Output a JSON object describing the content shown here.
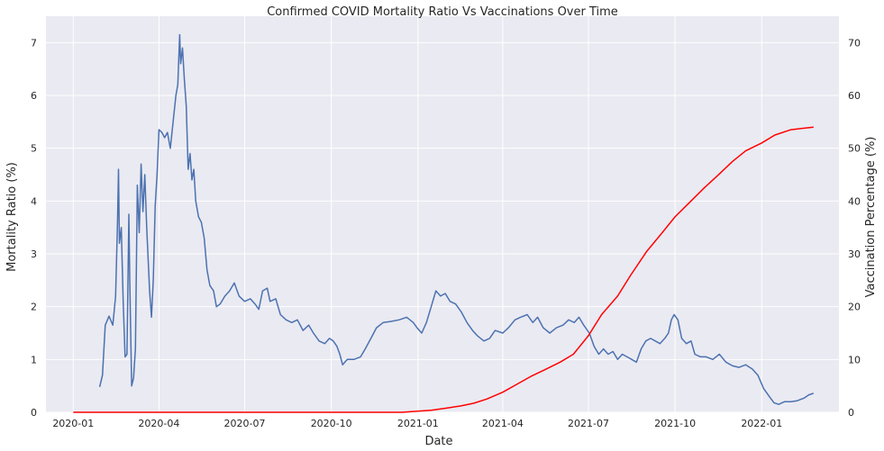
{
  "chart_data": {
    "type": "line",
    "title": "Confirmed COVID Mortality Ratio Vs Vaccinations Over Time",
    "xlabel": "Date",
    "ylabel_left": "Mortality Ratio (%)",
    "ylabel_right": "Vaccination Percentage (%)",
    "x_ticks": [
      "2020-01",
      "2020-04",
      "2020-07",
      "2020-10",
      "2021-01",
      "2021-04",
      "2021-07",
      "2021-10",
      "2022-01"
    ],
    "ylim_left": [
      0,
      7.5
    ],
    "yticks_left": [
      "0",
      "1",
      "2",
      "3",
      "4",
      "5",
      "6",
      "7"
    ],
    "ylim_right": [
      0,
      75
    ],
    "yticks_right": [
      "0",
      "10",
      "20",
      "30",
      "40",
      "50",
      "60",
      "70"
    ],
    "grid": true,
    "legend": "none",
    "colors": {
      "mortality": "#4c72b0",
      "vaccination": "#ff0000",
      "background": "#eaeaf2",
      "grid": "#ffffff"
    },
    "series": [
      {
        "axis": "left",
        "color": "#4c72b0",
        "points": [
          [
            "2020-01-29",
            0.48
          ],
          [
            "2020-02-01",
            0.7
          ],
          [
            "2020-02-04",
            1.65
          ],
          [
            "2020-02-08",
            1.82
          ],
          [
            "2020-02-12",
            1.65
          ],
          [
            "2020-02-15",
            2.2
          ],
          [
            "2020-02-17",
            3.6
          ],
          [
            "2020-02-18",
            4.6
          ],
          [
            "2020-02-19",
            3.2
          ],
          [
            "2020-02-21",
            3.5
          ],
          [
            "2020-02-23",
            2.1
          ],
          [
            "2020-02-25",
            1.05
          ],
          [
            "2020-02-27",
            1.1
          ],
          [
            "2020-02-29",
            3.75
          ],
          [
            "2020-03-01",
            2.5
          ],
          [
            "2020-03-03",
            0.5
          ],
          [
            "2020-03-05",
            0.65
          ],
          [
            "2020-03-07",
            1.2
          ],
          [
            "2020-03-09",
            4.3
          ],
          [
            "2020-03-11",
            3.4
          ],
          [
            "2020-03-13",
            4.7
          ],
          [
            "2020-03-15",
            3.8
          ],
          [
            "2020-03-17",
            4.5
          ],
          [
            "2020-03-19",
            3.5
          ],
          [
            "2020-03-22",
            2.3
          ],
          [
            "2020-03-24",
            1.8
          ],
          [
            "2020-03-26",
            2.5
          ],
          [
            "2020-03-28",
            3.9
          ],
          [
            "2020-03-30",
            4.5
          ],
          [
            "2020-04-01",
            5.35
          ],
          [
            "2020-04-04",
            5.3
          ],
          [
            "2020-04-07",
            5.2
          ],
          [
            "2020-04-10",
            5.3
          ],
          [
            "2020-04-13",
            5.0
          ],
          [
            "2020-04-16",
            5.5
          ],
          [
            "2020-04-19",
            6.0
          ],
          [
            "2020-04-21",
            6.2
          ],
          [
            "2020-04-23",
            7.15
          ],
          [
            "2020-04-24",
            6.6
          ],
          [
            "2020-04-26",
            6.9
          ],
          [
            "2020-04-28",
            6.3
          ],
          [
            "2020-04-30",
            5.8
          ],
          [
            "2020-05-02",
            4.6
          ],
          [
            "2020-05-04",
            4.9
          ],
          [
            "2020-05-06",
            4.4
          ],
          [
            "2020-05-08",
            4.6
          ],
          [
            "2020-05-10",
            4.0
          ],
          [
            "2020-05-13",
            3.7
          ],
          [
            "2020-05-16",
            3.6
          ],
          [
            "2020-05-19",
            3.3
          ],
          [
            "2020-05-22",
            2.7
          ],
          [
            "2020-05-25",
            2.4
          ],
          [
            "2020-05-29",
            2.3
          ],
          [
            "2020-06-01",
            2.0
          ],
          [
            "2020-06-05",
            2.05
          ],
          [
            "2020-06-10",
            2.2
          ],
          [
            "2020-06-15",
            2.3
          ],
          [
            "2020-06-20",
            2.45
          ],
          [
            "2020-06-25",
            2.2
          ],
          [
            "2020-07-01",
            2.1
          ],
          [
            "2020-07-07",
            2.15
          ],
          [
            "2020-07-12",
            2.05
          ],
          [
            "2020-07-16",
            1.95
          ],
          [
            "2020-07-20",
            2.3
          ],
          [
            "2020-07-25",
            2.35
          ],
          [
            "2020-07-28",
            2.1
          ],
          [
            "2020-08-03",
            2.15
          ],
          [
            "2020-08-08",
            1.85
          ],
          [
            "2020-08-14",
            1.75
          ],
          [
            "2020-08-20",
            1.7
          ],
          [
            "2020-08-26",
            1.75
          ],
          [
            "2020-09-01",
            1.55
          ],
          [
            "2020-09-07",
            1.65
          ],
          [
            "2020-09-12",
            1.5
          ],
          [
            "2020-09-18",
            1.35
          ],
          [
            "2020-09-24",
            1.3
          ],
          [
            "2020-09-29",
            1.4
          ],
          [
            "2020-10-03",
            1.35
          ],
          [
            "2020-10-07",
            1.25
          ],
          [
            "2020-10-10",
            1.1
          ],
          [
            "2020-10-13",
            0.9
          ],
          [
            "2020-10-18",
            1.0
          ],
          [
            "2020-10-25",
            1.0
          ],
          [
            "2020-11-01",
            1.05
          ],
          [
            "2020-11-06",
            1.2
          ],
          [
            "2020-11-12",
            1.4
          ],
          [
            "2020-11-18",
            1.6
          ],
          [
            "2020-11-25",
            1.7
          ],
          [
            "2020-12-03",
            1.72
          ],
          [
            "2020-12-12",
            1.75
          ],
          [
            "2020-12-20",
            1.8
          ],
          [
            "2020-12-27",
            1.7
          ],
          [
            "2020-12-31",
            1.6
          ],
          [
            "2021-01-05",
            1.5
          ],
          [
            "2021-01-10",
            1.7
          ],
          [
            "2021-01-15",
            2.0
          ],
          [
            "2021-01-20",
            2.3
          ],
          [
            "2021-01-25",
            2.2
          ],
          [
            "2021-01-30",
            2.25
          ],
          [
            "2021-02-04",
            2.1
          ],
          [
            "2021-02-10",
            2.05
          ],
          [
            "2021-02-16",
            1.9
          ],
          [
            "2021-02-22",
            1.7
          ],
          [
            "2021-02-28",
            1.55
          ],
          [
            "2021-03-05",
            1.45
          ],
          [
            "2021-03-12",
            1.35
          ],
          [
            "2021-03-18",
            1.4
          ],
          [
            "2021-03-24",
            1.55
          ],
          [
            "2021-04-01",
            1.5
          ],
          [
            "2021-04-07",
            1.6
          ],
          [
            "2021-04-14",
            1.75
          ],
          [
            "2021-04-20",
            1.8
          ],
          [
            "2021-04-27",
            1.85
          ],
          [
            "2021-05-03",
            1.7
          ],
          [
            "2021-05-08",
            1.8
          ],
          [
            "2021-05-14",
            1.6
          ],
          [
            "2021-05-21",
            1.5
          ],
          [
            "2021-05-28",
            1.6
          ],
          [
            "2021-06-04",
            1.65
          ],
          [
            "2021-06-10",
            1.75
          ],
          [
            "2021-06-16",
            1.7
          ],
          [
            "2021-06-21",
            1.8
          ],
          [
            "2021-06-26",
            1.65
          ],
          [
            "2021-07-02",
            1.5
          ],
          [
            "2021-07-07",
            1.25
          ],
          [
            "2021-07-12",
            1.1
          ],
          [
            "2021-07-17",
            1.2
          ],
          [
            "2021-07-22",
            1.1
          ],
          [
            "2021-07-27",
            1.15
          ],
          [
            "2021-08-01",
            1.0
          ],
          [
            "2021-08-06",
            1.1
          ],
          [
            "2021-08-11",
            1.05
          ],
          [
            "2021-08-16",
            1.0
          ],
          [
            "2021-08-21",
            0.95
          ],
          [
            "2021-08-26",
            1.2
          ],
          [
            "2021-08-31",
            1.35
          ],
          [
            "2021-09-05",
            1.4
          ],
          [
            "2021-09-10",
            1.35
          ],
          [
            "2021-09-15",
            1.3
          ],
          [
            "2021-09-20",
            1.4
          ],
          [
            "2021-09-24",
            1.5
          ],
          [
            "2021-09-27",
            1.75
          ],
          [
            "2021-09-30",
            1.85
          ],
          [
            "2021-10-04",
            1.75
          ],
          [
            "2021-10-08",
            1.4
          ],
          [
            "2021-10-13",
            1.3
          ],
          [
            "2021-10-18",
            1.35
          ],
          [
            "2021-10-22",
            1.1
          ],
          [
            "2021-10-28",
            1.05
          ],
          [
            "2021-11-03",
            1.05
          ],
          [
            "2021-11-10",
            1.0
          ],
          [
            "2021-11-17",
            1.1
          ],
          [
            "2021-11-24",
            0.95
          ],
          [
            "2021-12-01",
            0.88
          ],
          [
            "2021-12-08",
            0.85
          ],
          [
            "2021-12-15",
            0.9
          ],
          [
            "2021-12-22",
            0.82
          ],
          [
            "2021-12-28",
            0.7
          ],
          [
            "2022-01-03",
            0.45
          ],
          [
            "2022-01-09",
            0.3
          ],
          [
            "2022-01-14",
            0.18
          ],
          [
            "2022-01-19",
            0.15
          ],
          [
            "2022-01-25",
            0.2
          ],
          [
            "2022-02-01",
            0.2
          ],
          [
            "2022-02-08",
            0.22
          ],
          [
            "2022-02-15",
            0.27
          ],
          [
            "2022-02-20",
            0.33
          ],
          [
            "2022-02-25",
            0.36
          ]
        ]
      },
      {
        "axis": "right",
        "color": "#ff0000",
        "points": [
          [
            "2020-01-01",
            0
          ],
          [
            "2020-12-15",
            0
          ],
          [
            "2021-01-01",
            0.2
          ],
          [
            "2021-01-15",
            0.4
          ],
          [
            "2021-02-01",
            0.8
          ],
          [
            "2021-02-15",
            1.2
          ],
          [
            "2021-03-01",
            1.7
          ],
          [
            "2021-03-15",
            2.5
          ],
          [
            "2021-04-01",
            3.8
          ],
          [
            "2021-04-15",
            5.2
          ],
          [
            "2021-05-01",
            6.8
          ],
          [
            "2021-05-15",
            8.0
          ],
          [
            "2021-06-01",
            9.5
          ],
          [
            "2021-06-15",
            11.0
          ],
          [
            "2021-07-01",
            14.5
          ],
          [
            "2021-07-15",
            18.5
          ],
          [
            "2021-08-01",
            22.0
          ],
          [
            "2021-08-15",
            26.0
          ],
          [
            "2021-09-01",
            30.5
          ],
          [
            "2021-09-15",
            33.5
          ],
          [
            "2021-10-01",
            37.0
          ],
          [
            "2021-10-15",
            39.5
          ],
          [
            "2021-11-01",
            42.5
          ],
          [
            "2021-11-15",
            44.8
          ],
          [
            "2021-12-01",
            47.5
          ],
          [
            "2021-12-15",
            49.5
          ],
          [
            "2022-01-01",
            51.0
          ],
          [
            "2022-01-15",
            52.5
          ],
          [
            "2022-02-01",
            53.5
          ],
          [
            "2022-02-25",
            54.0
          ]
        ]
      }
    ]
  }
}
